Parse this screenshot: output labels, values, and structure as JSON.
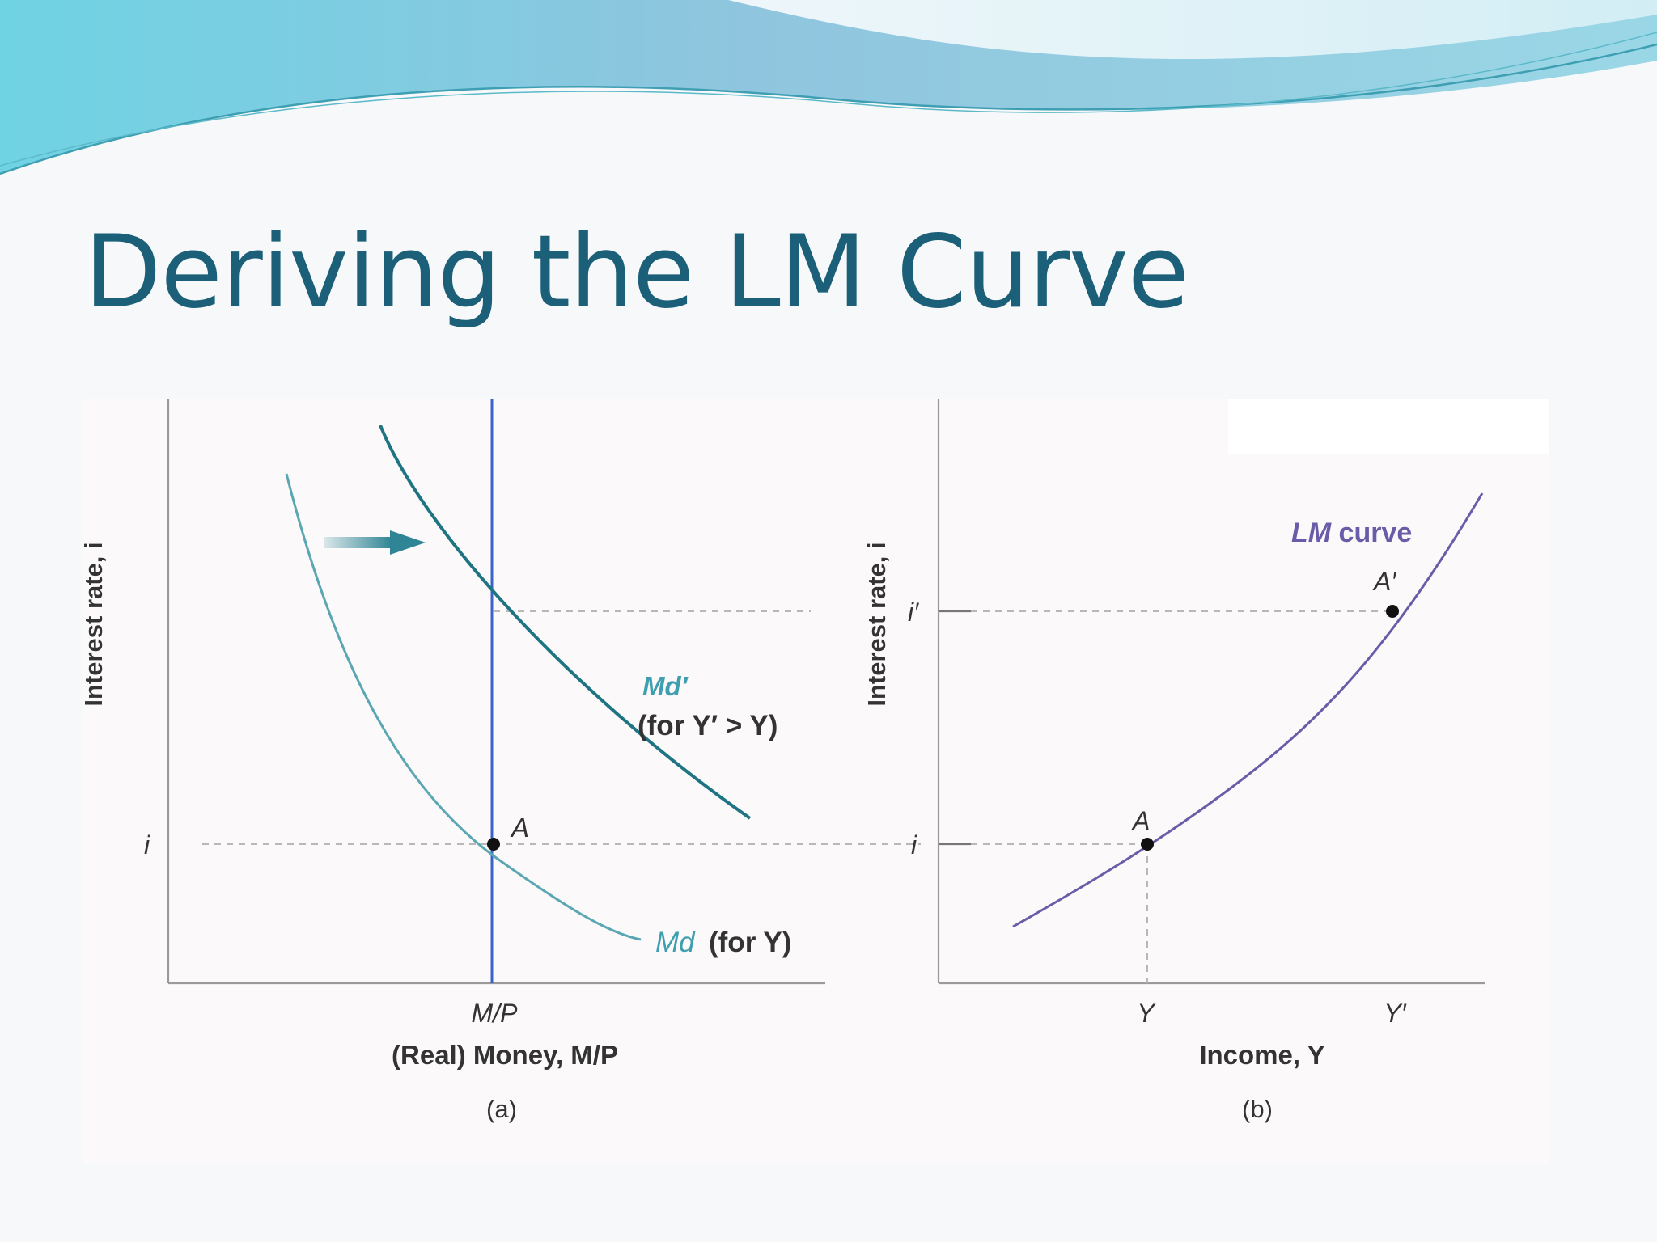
{
  "slide": {
    "title": "Deriving the LM Curve"
  },
  "panel_a": {
    "caption": "(a)",
    "y_axis_label": "Interest rate, i",
    "x_axis_label": "(Real) Money, M/P",
    "x_tick_label": "M/P",
    "y_tick_label": "i",
    "point_label": "A",
    "md_label": "Md",
    "md_suffix": "(for Y)",
    "md_prime_label": "Md′",
    "md_prime_note": "(for Y′ > Y)",
    "colors": {
      "md": "#5aa7b3",
      "md_prime": "#1e7482",
      "money_supply": "#3a64c6",
      "shift_arrow": "#2f8595"
    }
  },
  "panel_b": {
    "caption": "(b)",
    "y_axis_label": "Interest rate, i",
    "x_axis_label": "Income, Y",
    "x_tick_labels": [
      "Y",
      "Y′"
    ],
    "y_tick_labels": [
      "i",
      "i′"
    ],
    "point_labels": [
      "A",
      "A′"
    ],
    "curve_label_italic": "LM",
    "curve_label_rest": " curve",
    "colors": {
      "lm_curve": "#6a5ca8"
    }
  }
}
